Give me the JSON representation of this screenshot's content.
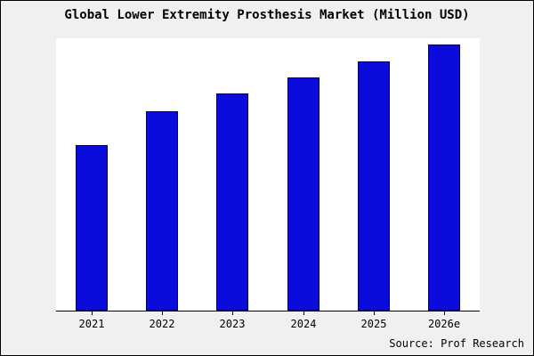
{
  "source": "Source: Prof Research",
  "colors": {
    "bar_fill": "#0b0bdb",
    "bar_edge": "#000066",
    "figure_background": "#f0f0f0",
    "plot_background": "#ffffff",
    "text": "#000000"
  },
  "chart_data": {
    "type": "bar",
    "title": "Global Lower Extremity Prosthesis Market (Million USD)",
    "categories": [
      "2021",
      "2022",
      "2023",
      "2024",
      "2025",
      "2026e"
    ],
    "values": [
      1850,
      2230,
      2430,
      2610,
      2790,
      2980
    ],
    "xlabel": "",
    "ylabel": "",
    "ylim": [
      0,
      3050
    ],
    "grid": false,
    "legend": false,
    "annotations": [
      "Source: Prof Research"
    ]
  }
}
